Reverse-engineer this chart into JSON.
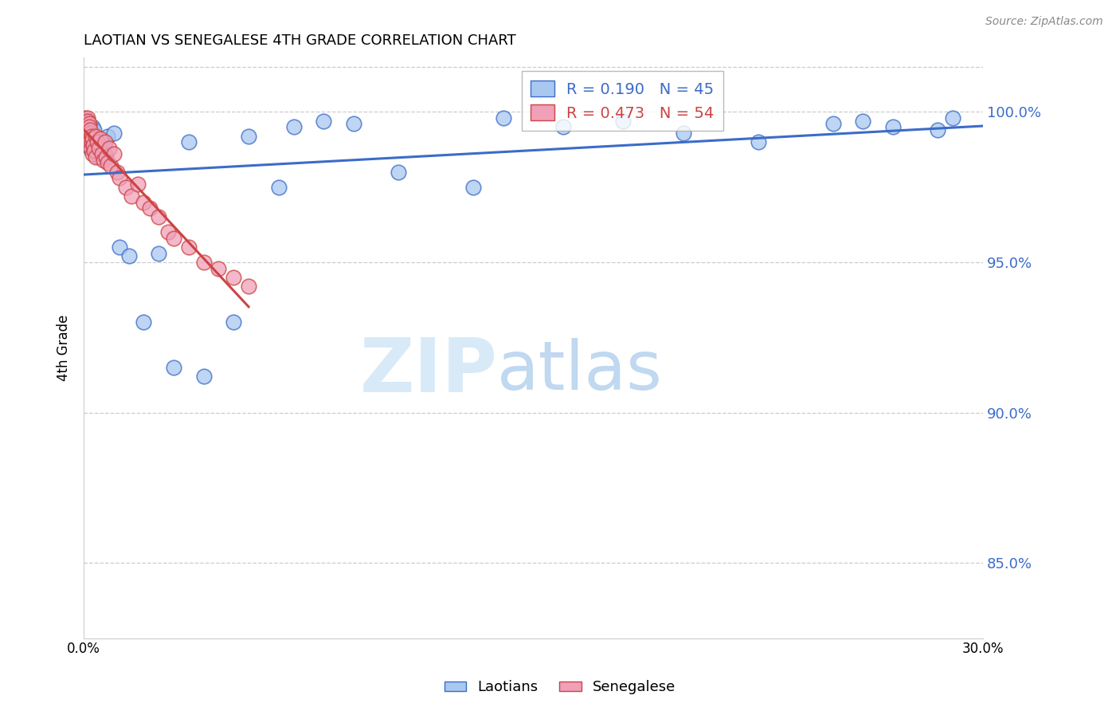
{
  "title": "LAOTIAN VS SENEGALESE 4TH GRADE CORRELATION CHART",
  "source": "Source: ZipAtlas.com",
  "ylabel": "4th Grade",
  "xlim": [
    0.0,
    30.0
  ],
  "ylim": [
    82.5,
    101.8
  ],
  "yticks": [
    85.0,
    90.0,
    95.0,
    100.0
  ],
  "ytick_labels": [
    "85.0%",
    "90.0%",
    "95.0%",
    "100.0%"
  ],
  "laotian_color": "#A8C8F0",
  "senegalese_color": "#F0A0B8",
  "laotian_line_color": "#3B6CC8",
  "senegalese_line_color": "#CC4444",
  "legend_laotian_r": "0.190",
  "legend_laotian_n": "45",
  "legend_senegalese_r": "0.473",
  "legend_senegalese_n": "54",
  "laotian_x": [
    0.05,
    0.08,
    0.1,
    0.12,
    0.14,
    0.16,
    0.18,
    0.2,
    0.22,
    0.25,
    0.28,
    0.3,
    0.35,
    0.4,
    0.5,
    0.55,
    0.6,
    0.7,
    0.8,
    1.0,
    1.2,
    1.5,
    2.0,
    2.5,
    3.0,
    3.5,
    4.0,
    5.0,
    5.5,
    6.5,
    7.0,
    8.0,
    9.0,
    10.5,
    13.0,
    14.0,
    16.0,
    18.0,
    20.0,
    22.5,
    25.0,
    26.0,
    27.0,
    28.5,
    29.0
  ],
  "laotian_y": [
    99.2,
    99.5,
    99.6,
    99.3,
    99.7,
    99.4,
    99.0,
    99.1,
    98.8,
    99.3,
    99.5,
    98.9,
    99.4,
    99.1,
    98.5,
    98.7,
    99.0,
    98.6,
    99.2,
    99.3,
    95.5,
    95.2,
    93.0,
    95.3,
    91.5,
    99.0,
    91.2,
    93.0,
    99.2,
    97.5,
    99.5,
    99.7,
    99.6,
    98.0,
    97.5,
    99.8,
    99.5,
    99.7,
    99.3,
    99.0,
    99.6,
    99.7,
    99.5,
    99.4,
    99.8
  ],
  "senegalese_x": [
    0.02,
    0.04,
    0.05,
    0.06,
    0.07,
    0.08,
    0.09,
    0.1,
    0.11,
    0.12,
    0.13,
    0.14,
    0.15,
    0.16,
    0.17,
    0.18,
    0.19,
    0.2,
    0.22,
    0.23,
    0.25,
    0.27,
    0.28,
    0.3,
    0.32,
    0.35,
    0.38,
    0.4,
    0.45,
    0.5,
    0.55,
    0.6,
    0.65,
    0.7,
    0.75,
    0.8,
    0.85,
    0.9,
    1.0,
    1.1,
    1.2,
    1.4,
    1.6,
    1.8,
    2.0,
    2.2,
    2.5,
    2.8,
    3.0,
    3.5,
    4.0,
    4.5,
    5.0,
    5.5
  ],
  "senegalese_y": [
    99.5,
    99.8,
    99.6,
    99.3,
    99.7,
    99.4,
    99.2,
    99.6,
    99.5,
    99.8,
    99.3,
    99.7,
    99.4,
    99.2,
    99.6,
    99.0,
    99.5,
    99.3,
    99.4,
    98.8,
    99.2,
    99.0,
    98.6,
    99.1,
    98.9,
    98.7,
    99.2,
    98.5,
    99.0,
    98.8,
    99.1,
    98.6,
    98.4,
    99.0,
    98.5,
    98.3,
    98.8,
    98.2,
    98.6,
    98.0,
    97.8,
    97.5,
    97.2,
    97.6,
    97.0,
    96.8,
    96.5,
    96.0,
    95.8,
    95.5,
    95.0,
    94.8,
    94.5,
    94.2
  ]
}
